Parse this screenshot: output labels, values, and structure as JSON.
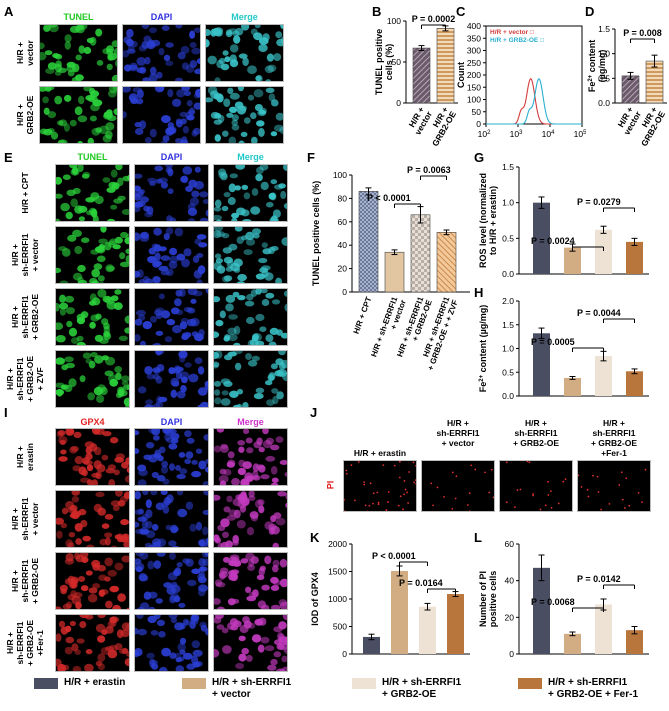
{
  "panels": {
    "A": "A",
    "B": "B",
    "C": "C",
    "D": "D",
    "E": "E",
    "F": "F",
    "G": "G",
    "H": "H",
    "I": "I",
    "J": "J",
    "K": "K",
    "L": "L"
  },
  "microscopy": {
    "A": {
      "columns": [
        "TUNEL",
        "DAPI",
        "Merge"
      ],
      "column_colors": [
        "#22c822",
        "#3030e0",
        "#22c8c8"
      ],
      "rows": [
        "H/R +\nvector",
        "H/R +\nGRB2-OE"
      ],
      "types": [
        "green",
        "blue",
        "cyan"
      ]
    },
    "E": {
      "columns": [
        "TUNEL",
        "DAPI",
        "Merge"
      ],
      "column_colors": [
        "#22c822",
        "#3030e0",
        "#22c8c8"
      ],
      "rows": [
        "H/R + CPT",
        "H/R +\nsh-ERRFI1\n+ vector",
        "H/R +\nsh-ERRFI1\n+ GRB2-OE",
        "H/R +\nsh-ERRFI1\n+ GRB2-OE\n+ ZVF"
      ],
      "types": [
        "green",
        "blue",
        "cyan"
      ]
    },
    "I": {
      "columns": [
        "GPX4",
        "DAPI",
        "Merge"
      ],
      "column_colors": [
        "#e02020",
        "#3030e0",
        "#d030d0"
      ],
      "rows": [
        "H/R +\nerastin",
        "H/R +\nsh-ERRFI1\n+ vector",
        "H/R +\nsh-ERRFI1\n+ GRB2-OE",
        "H/R +\nsh-ERRFI1\n+ GRB2-OE\n+Fer-1"
      ],
      "types": [
        "red",
        "blue",
        "magenta"
      ]
    },
    "J": {
      "row_label": "PI",
      "row_color": "#e02020",
      "columns": [
        "H/R + erastin",
        "H/R +\nsh-ERRFI1\n+ vector",
        "H/R +\nsh-ERRFI1\n+ GRB2-OE",
        "H/R +\nsh-ERRFI1\n+ GRB2-OE\n+Fer-1"
      ]
    }
  },
  "colors": {
    "erastin": "#4a4e63",
    "vector": "#d2ad84",
    "grb2oe": "#ede2d3",
    "fer1": "#b8763c",
    "flow_vector": "#d43c3c",
    "flow_grb2": "#29b0d0"
  },
  "chart_data": [
    {
      "id": "B",
      "type": "bar",
      "ylabel": "TUNEL positive\ncells (%)",
      "categories": [
        "H/R +\nvector",
        "H/R +\nGRB2-OE"
      ],
      "values": [
        67,
        91
      ],
      "errors": [
        3,
        3
      ],
      "ylim": [
        0,
        100
      ],
      "yticks": [
        0,
        50,
        100
      ],
      "pvalues": [
        {
          "text": "P = 0.0002",
          "from": 0,
          "to": 1
        }
      ]
    },
    {
      "id": "C",
      "type": "line",
      "ylabel": "Count",
      "xlabel_ticks": [
        "10",
        "10",
        "10",
        "10"
      ],
      "xlabel_exp": [
        "2",
        "3",
        "4",
        "5"
      ],
      "ylim": [
        0,
        400
      ],
      "yticks": [
        0,
        50,
        100,
        150,
        200,
        250,
        300,
        350,
        400
      ],
      "legend": [
        "H/R + vector",
        "H/R + GRB2-OE"
      ],
      "series": [
        {
          "name": "H/R + vector",
          "peak_x": 2500,
          "peak_y": 185
        },
        {
          "name": "H/R + GRB2-OE",
          "peak_x": 4500,
          "peak_y": 185
        }
      ]
    },
    {
      "id": "D",
      "type": "bar",
      "ylabel": "Fe2+ content\n(µg/mg)",
      "categories": [
        "H/R +\nvector",
        "H/R +\nGRB2-OE"
      ],
      "values": [
        0.55,
        0.85
      ],
      "errors": [
        0.07,
        0.12
      ],
      "ylim": [
        0,
        1.5
      ],
      "yticks": [
        0.0,
        0.5,
        1.0,
        1.5
      ],
      "pvalues": [
        {
          "text": "P = 0.008",
          "from": 0,
          "to": 1
        }
      ]
    },
    {
      "id": "F",
      "type": "bar",
      "ylabel": "TUNEL positive cells (%)",
      "categories": [
        "H/R + CPT",
        "H/R + sh-ERRFI1\n+ vector",
        "H/R + sh-ERRFI1\n+ GRB2-OE",
        "H/R + sh-ERRFI1\n+ GRB2-OE + + ZVF"
      ],
      "values": [
        86,
        34,
        66,
        51
      ],
      "errors": [
        3,
        2,
        7,
        2
      ],
      "ylim": [
        0,
        100
      ],
      "yticks": [
        0,
        20,
        40,
        60,
        80,
        100
      ],
      "pvalues": [
        {
          "text": "P < 0.0001",
          "from": 1,
          "to": 2
        },
        {
          "text": "P = 0.0063",
          "from": 2,
          "to": 3
        }
      ]
    },
    {
      "id": "G",
      "type": "bar",
      "ylabel": "ROS level (normalized\nto H/R + erastin)",
      "categories": [
        "H/R + erastin",
        "H/R + sh-ERRFI1 + vector",
        "H/R + sh-ERRFI1 + GRB2-OE",
        "H/R + sh-ERRFI1 + GRB2-OE + Fer-1"
      ],
      "values": [
        1.0,
        0.37,
        0.62,
        0.45
      ],
      "errors": [
        0.08,
        0.05,
        0.05,
        0.05
      ],
      "ylim": [
        0,
        1.5
      ],
      "yticks": [
        0.0,
        0.5,
        1.0,
        1.5
      ],
      "pvalues": [
        {
          "text": "P = 0.0024",
          "from": 1,
          "to": 2
        },
        {
          "text": "P = 0.0279",
          "from": 2,
          "to": 3
        }
      ]
    },
    {
      "id": "H",
      "type": "bar",
      "ylabel": "Fe2+ content (µg/mg)",
      "categories": [
        "H/R + erastin",
        "H/R + sh-ERRFI1 + vector",
        "H/R + sh-ERRFI1 + GRB2-OE",
        "H/R + sh-ERRFI1 + GRB2-OE + Fer-1"
      ],
      "values": [
        1.32,
        0.38,
        0.84,
        0.52
      ],
      "errors": [
        0.11,
        0.03,
        0.1,
        0.05
      ],
      "ylim": [
        0,
        2.0
      ],
      "yticks": [
        0.0,
        0.5,
        1.0,
        1.5,
        2.0
      ],
      "pvalues": [
        {
          "text": "P = 0.0005",
          "from": 1,
          "to": 2
        },
        {
          "text": "P = 0.0044",
          "from": 2,
          "to": 3
        }
      ]
    },
    {
      "id": "K",
      "type": "bar",
      "ylabel": "IOD of GPX4",
      "categories": [
        "H/R + erastin",
        "H/R + sh-ERRFI1 + vector",
        "H/R + sh-ERRFI1 + GRB2-OE",
        "H/R + sh-ERRFI1 + GRB2-OE + Fer-1"
      ],
      "values": [
        310,
        1510,
        860,
        1090
      ],
      "errors": [
        50,
        90,
        60,
        45
      ],
      "ylim": [
        0,
        2000
      ],
      "yticks": [
        0,
        500,
        1000,
        1500,
        2000
      ],
      "pvalues": [
        {
          "text": "P < 0.0001",
          "from": 1,
          "to": 2
        },
        {
          "text": "P = 0.0164",
          "from": 2,
          "to": 3
        }
      ]
    },
    {
      "id": "L",
      "type": "bar",
      "ylabel": "Number of PI\npositive cells",
      "categories": [
        "H/R + erastin",
        "H/R + sh-ERRFI1 + vector",
        "H/R + sh-ERRFI1 + GRB2-OE",
        "H/R + sh-ERRFI1 + GRB2-OE + Fer-1"
      ],
      "values": [
        47,
        11,
        27,
        13
      ],
      "errors": [
        7,
        1,
        3,
        2
      ],
      "ylim": [
        0,
        60
      ],
      "yticks": [
        0,
        20,
        40,
        60
      ],
      "pvalues": [
        {
          "text": "P = 0.0068",
          "from": 1,
          "to": 2
        },
        {
          "text": "P = 0.0142",
          "from": 2,
          "to": 3
        }
      ]
    }
  ],
  "legend": [
    {
      "label": "H/R + erastin",
      "color": "#4a4e63"
    },
    {
      "label": "H/R + sh-ERRFI1\n+ vector",
      "color": "#d2ad84"
    },
    {
      "label": "H/R + sh-ERRFI1\n+ GRB2-OE",
      "color": "#ede2d3"
    },
    {
      "label": "H/R + sh-ERRFI1\n+ GRB2-OE + Fer-1",
      "color": "#b8763c"
    }
  ]
}
